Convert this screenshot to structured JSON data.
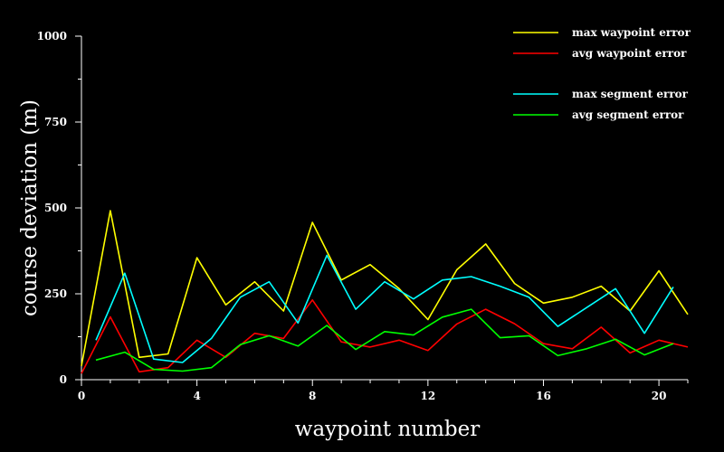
{
  "chart_data": {
    "type": "line",
    "xlabel": "waypoint number",
    "ylabel": "course deviation (m)",
    "xlim": [
      0,
      21
    ],
    "ylim": [
      0,
      1000
    ],
    "xticks": [
      0,
      4,
      8,
      12,
      16,
      20
    ],
    "yticks": [
      0,
      250,
      500,
      750,
      1000
    ],
    "grid": false,
    "legend_position": "top-right",
    "background": "#000000",
    "series": [
      {
        "name": "max waypoint error",
        "color": "#ffff00",
        "x": [
          0,
          1,
          2,
          3,
          4,
          5,
          6,
          7,
          8,
          9,
          10,
          11,
          12,
          13,
          14,
          15,
          16,
          17,
          18,
          19,
          20,
          21
        ],
        "y": [
          40,
          492,
          65,
          75,
          355,
          218,
          285,
          200,
          458,
          290,
          335,
          265,
          175,
          320,
          395,
          280,
          223,
          240,
          272,
          200,
          317,
          190
        ]
      },
      {
        "name": "avg waypoint error",
        "color": "#ff0000",
        "x": [
          0,
          1,
          2,
          3,
          4,
          5,
          6,
          7,
          8,
          9,
          10,
          11,
          12,
          13,
          14,
          15,
          16,
          17,
          18,
          19,
          20,
          21
        ],
        "y": [
          18,
          183,
          23,
          35,
          115,
          65,
          135,
          120,
          232,
          110,
          95,
          115,
          85,
          162,
          205,
          163,
          105,
          90,
          153,
          78,
          115,
          95
        ]
      },
      {
        "name": "max segment error",
        "color": "#00ffff",
        "x": [
          0.5,
          1.5,
          2.5,
          3.5,
          4.5,
          5.5,
          6.5,
          7.5,
          8.5,
          9.5,
          10.5,
          11.5,
          12.5,
          13.5,
          14.5,
          15.5,
          16.5,
          17.5,
          18.5,
          19.5,
          20.5
        ],
        "y": [
          115,
          310,
          60,
          50,
          120,
          240,
          285,
          165,
          362,
          205,
          285,
          235,
          290,
          300,
          272,
          240,
          155,
          210,
          265,
          135,
          270
        ]
      },
      {
        "name": "avg segment error",
        "color": "#00ff00",
        "x": [
          0.5,
          1.5,
          2.5,
          3.5,
          4.5,
          5.5,
          6.5,
          7.5,
          8.5,
          9.5,
          10.5,
          11.5,
          12.5,
          13.5,
          14.5,
          15.5,
          16.5,
          17.5,
          18.5,
          19.5,
          20.5
        ],
        "y": [
          57,
          80,
          30,
          25,
          35,
          102,
          128,
          98,
          158,
          88,
          140,
          130,
          182,
          205,
          122,
          128,
          70,
          90,
          118,
          72,
          105
        ]
      }
    ]
  }
}
